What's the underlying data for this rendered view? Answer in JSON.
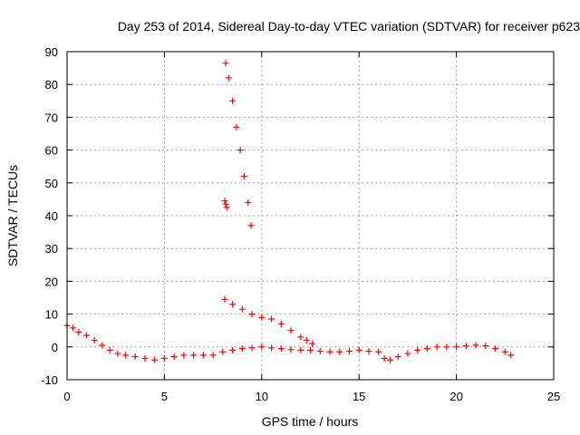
{
  "chart_data": {
    "type": "scatter",
    "title": "Day 253 of 2014, Sidereal Day-to-day VTEC variation (SDTVAR) for receiver p623",
    "xlabel": "GPS time / hours",
    "ylabel": "SDTVAR / TECUs",
    "xlim": [
      0,
      25
    ],
    "ylim": [
      -10,
      90
    ],
    "xticks": [
      0,
      5,
      10,
      15,
      20,
      25
    ],
    "yticks": [
      -10,
      0,
      10,
      20,
      30,
      40,
      50,
      60,
      70,
      80,
      90
    ],
    "grid": true,
    "marker": "plus",
    "color": "#ff0000",
    "series": [
      {
        "name": "main-band",
        "x": [
          0.0,
          0.3,
          0.6,
          1.0,
          1.4,
          1.8,
          2.2,
          2.6,
          3.0,
          3.5,
          4.0,
          4.5,
          5.0,
          5.5,
          6.0,
          6.5,
          7.0,
          7.5,
          8.0,
          8.5,
          9.0,
          9.5,
          10.0,
          10.5,
          11.0,
          11.5,
          12.0,
          12.5,
          13.0,
          13.5,
          14.0,
          14.5,
          15.0,
          15.5,
          16.0,
          16.3,
          16.6,
          17.0,
          17.5,
          18.0,
          18.5,
          19.0,
          19.5,
          20.0,
          20.5,
          21.0,
          21.5,
          22.0,
          22.5,
          22.8
        ],
        "y": [
          6.5,
          5.8,
          4.5,
          3.5,
          2.0,
          0.5,
          -1.0,
          -2.0,
          -2.5,
          -3.0,
          -3.5,
          -4.0,
          -3.5,
          -3.0,
          -2.5,
          -2.5,
          -2.5,
          -2.5,
          -1.5,
          -1.0,
          -0.5,
          -0.3,
          0.0,
          -0.3,
          -0.5,
          -0.8,
          -1.0,
          -1.0,
          -1.3,
          -1.5,
          -1.5,
          -1.3,
          -1.0,
          -1.3,
          -1.5,
          -3.5,
          -4.0,
          -3.0,
          -2.0,
          -1.0,
          -0.5,
          0.0,
          0.0,
          0.0,
          0.3,
          0.5,
          0.3,
          -0.5,
          -1.5,
          -2.5
        ]
      },
      {
        "name": "upper-band",
        "x": [
          8.1,
          8.5,
          9.0,
          9.5,
          10.0,
          10.5,
          11.0,
          11.5,
          12.0,
          12.3,
          12.6
        ],
        "y": [
          14.5,
          13.0,
          11.5,
          10.0,
          9.0,
          8.5,
          7.0,
          5.0,
          3.0,
          2.0,
          1.0
        ]
      },
      {
        "name": "steep-arc",
        "x": [
          8.15,
          8.3,
          8.5,
          8.7,
          8.9,
          9.1,
          9.3,
          9.45
        ],
        "y": [
          86.5,
          82.0,
          75.0,
          67.0,
          60.0,
          52.0,
          44.0,
          37.0
        ]
      },
      {
        "name": "isolated-cluster",
        "x": [
          8.1,
          8.15,
          8.2
        ],
        "y": [
          44.5,
          43.5,
          42.5
        ]
      }
    ]
  }
}
